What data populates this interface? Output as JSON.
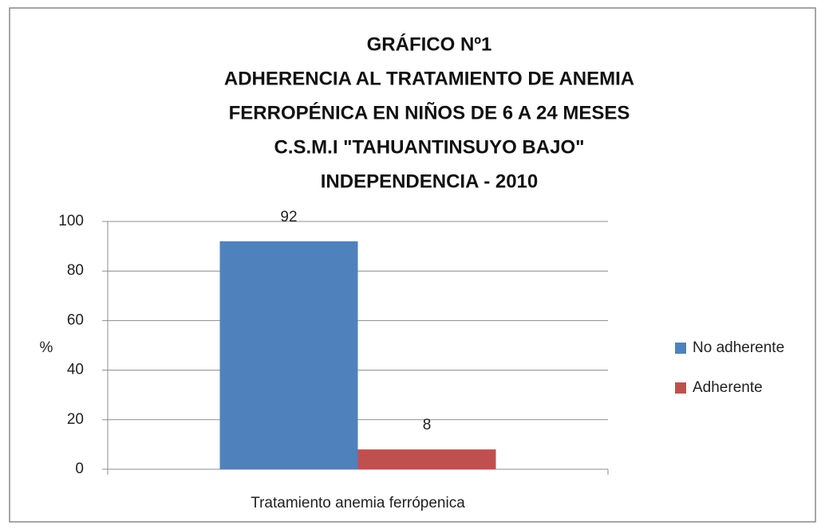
{
  "chart_data": {
    "type": "bar",
    "title": [
      "GRÁFICO Nº1",
      "ADHERENCIA AL TRATAMIENTO DE ANEMIA",
      "FERROPÉNICA EN NIÑOS DE 6 A 24 MESES",
      "C.S.M.I \"TAHUANTINSUYO BAJO\"",
      "INDEPENDENCIA - 2010"
    ],
    "y_label": "%",
    "categories": [
      "Tratamiento anemia ferrópenica"
    ],
    "series": [
      {
        "name": "No adherente",
        "color": "#4f81bd",
        "values": [
          92
        ]
      },
      {
        "name": "Adherente",
        "color": "#c0504d",
        "values": [
          8
        ]
      }
    ],
    "ylim": [
      0,
      100
    ],
    "yticks": [
      0,
      20,
      40,
      60,
      80,
      100
    ],
    "grid": true,
    "legend": "right"
  }
}
